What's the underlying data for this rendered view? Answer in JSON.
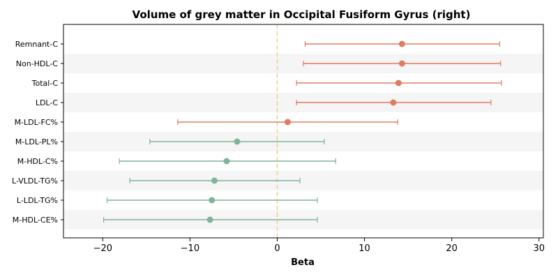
{
  "chart_data": {
    "type": "forest",
    "title": "Volume of grey matter in Occipital Fusiform Gyrus (right)",
    "xlabel": "Beta",
    "ylabel": "",
    "xlim": [
      -24.5,
      30.5
    ],
    "xticks": [
      -20,
      -10,
      0,
      10,
      20,
      30
    ],
    "xtick_labels": [
      "−20",
      "−10",
      "0",
      "10",
      "20",
      "30"
    ],
    "reference_line": 0,
    "grid": false,
    "colors": {
      "positive": "#E07B5F",
      "negative": "#81B29A",
      "reference": "#F2CC8F",
      "band": "#F5F5F5"
    },
    "points": [
      {
        "label": "Remnant-C",
        "beta": 14.3,
        "lower": 3.2,
        "upper": 25.5
      },
      {
        "label": "Non-HDL-C",
        "beta": 14.3,
        "lower": 3.0,
        "upper": 25.6
      },
      {
        "label": "Total-C",
        "beta": 13.9,
        "lower": 2.2,
        "upper": 25.7
      },
      {
        "label": "LDL-C",
        "beta": 13.3,
        "lower": 2.2,
        "upper": 24.5
      },
      {
        "label": "M-LDL-FC%",
        "beta": 1.2,
        "lower": -11.4,
        "upper": 13.8
      },
      {
        "label": "M-LDL-PL%",
        "beta": -4.6,
        "lower": -14.6,
        "upper": 5.4
      },
      {
        "label": "M-HDL-C%",
        "beta": -5.8,
        "lower": -18.1,
        "upper": 6.7
      },
      {
        "label": "L-VLDL-TG%",
        "beta": -7.2,
        "lower": -16.9,
        "upper": 2.6
      },
      {
        "label": "L-LDL-TG%",
        "beta": -7.5,
        "lower": -19.5,
        "upper": 4.6
      },
      {
        "label": "M-HDL-CE%",
        "beta": -7.7,
        "lower": -19.9,
        "upper": 4.6
      }
    ]
  }
}
